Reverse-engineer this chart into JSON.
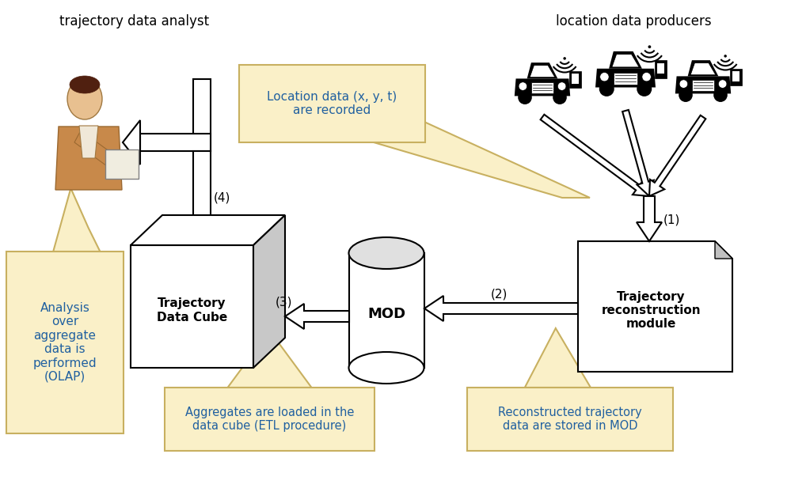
{
  "bg_color": "#ffffff",
  "cream": "#faf0c8",
  "cream_edge": "#c8b060",
  "title_tda": "trajectory data analyst",
  "title_ldp": "location data producers",
  "label_tdc": "Trajectory\nData Cube",
  "label_mod": "MOD",
  "label_trm": "Trajectory\nreconstruction\nmodule",
  "label_analysis": "Analysis\nover\naggregate\ndata is\nperformed\n(OLAP)",
  "label_loc": "Location data (x, y, t)\nare recorded",
  "label_agg": "Aggregates are loaded in the\ndata cube (ETL procedure)",
  "label_rec": "Reconstructed trajectory\ndata are stored in MOD",
  "lbl1": "(1)",
  "lbl2": "(2)",
  "lbl3": "(3)",
  "lbl4": "(4)"
}
